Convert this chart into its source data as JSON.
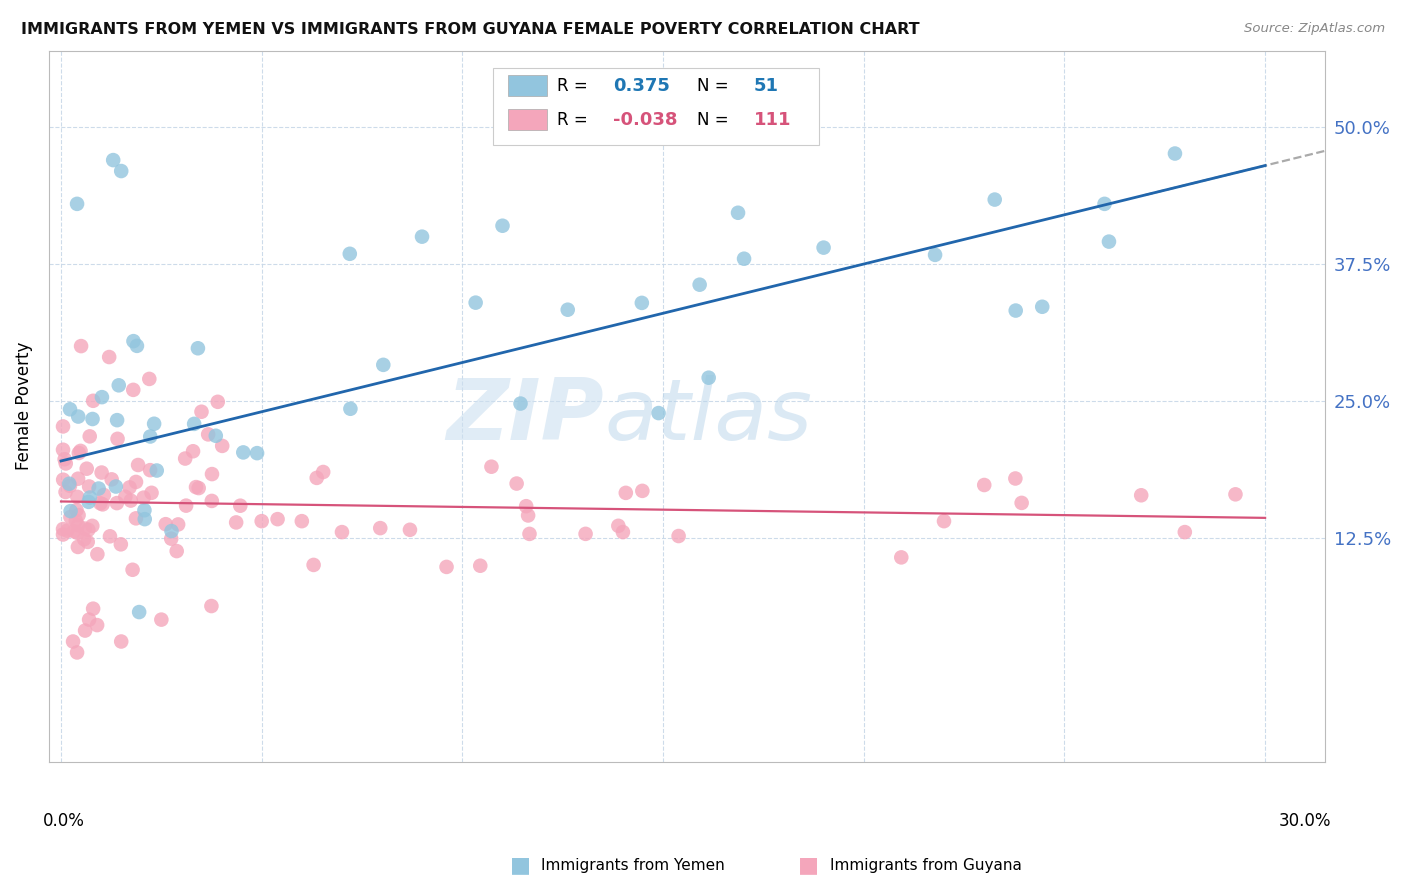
{
  "title": "IMMIGRANTS FROM YEMEN VS IMMIGRANTS FROM GUYANA FEMALE POVERTY CORRELATION CHART",
  "source": "Source: ZipAtlas.com",
  "ylabel": "Female Poverty",
  "y_ticks": [
    0.125,
    0.25,
    0.375,
    0.5
  ],
  "y_tick_labels": [
    "12.5%",
    "25.0%",
    "37.5%",
    "50.0%"
  ],
  "x_ticks": [
    0.0,
    0.05,
    0.1,
    0.15,
    0.2,
    0.25,
    0.3
  ],
  "xlim": [
    -0.003,
    0.315
  ],
  "ylim": [
    -0.08,
    0.57
  ],
  "legend_r_yemen": "0.375",
  "legend_n_yemen": "51",
  "legend_r_guyana": "-0.038",
  "legend_n_guyana": "111",
  "color_yemen": "#92c5de",
  "color_guyana": "#f4a6bb",
  "color_trend_yemen": "#2166ac",
  "color_trend_guyana": "#d6537a",
  "yemen_trend_x0": 0.0,
  "yemen_trend_y0": 0.195,
  "yemen_trend_x1": 0.3,
  "yemen_trend_y1": 0.465,
  "guyana_trend_x0": 0.0,
  "guyana_trend_y0": 0.158,
  "guyana_trend_x1": 0.3,
  "guyana_trend_y1": 0.143,
  "watermark_zip": "ZIP",
  "watermark_atlas": "atlas"
}
